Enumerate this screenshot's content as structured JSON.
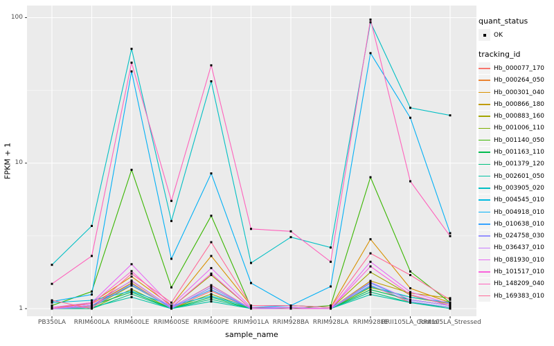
{
  "chart_data": {
    "type": "line",
    "title": "",
    "xlabel": "sample_name",
    "ylabel": "FPKM + 1",
    "y_scale": "log10",
    "y_ticks": [
      1,
      10,
      100
    ],
    "y_minor_ticks": [
      3.1623,
      31.623
    ],
    "ylim": [
      0.89,
      121
    ],
    "grid": true,
    "legend_position": "right",
    "categories": [
      "PB350LA",
      "RRIM600LA",
      "RRIM600LE",
      "RRIM600SE",
      "RRIM600PE",
      "RRIM901LA",
      "RRIM928BA",
      "RRIM928LA",
      "RRIM928LE",
      "RRII105LA_Control",
      "RRII105LA_Stressed"
    ],
    "series": [
      {
        "name": "Hb_000077_170",
        "color": "#F8766D",
        "values": [
          1.0,
          1.04,
          1.5,
          1.0,
          1.32,
          1.0,
          1.0,
          1.0,
          1.45,
          1.1,
          1.02
        ]
      },
      {
        "name": "Hb_000264_050",
        "color": "#EA8331",
        "values": [
          1.02,
          1.08,
          1.55,
          1.02,
          1.45,
          1.0,
          1.02,
          1.0,
          1.5,
          1.15,
          1.05
        ]
      },
      {
        "name": "Hb_000301_040",
        "color": "#D89000",
        "values": [
          1.0,
          1.1,
          1.66,
          1.05,
          2.3,
          1.05,
          1.05,
          1.02,
          3.0,
          1.38,
          1.1
        ]
      },
      {
        "name": "Hb_000866_180",
        "color": "#C09B00",
        "values": [
          1.0,
          1.05,
          1.5,
          1.0,
          1.4,
          1.0,
          1.0,
          1.0,
          1.55,
          1.28,
          1.18
        ]
      },
      {
        "name": "Hb_000883_160",
        "color": "#A3A500",
        "values": [
          1.0,
          1.02,
          1.44,
          1.02,
          1.7,
          1.0,
          1.0,
          1.0,
          1.78,
          1.24,
          1.05
        ]
      },
      {
        "name": "Hb_001006_110",
        "color": "#7CAE00",
        "values": [
          1.0,
          1.0,
          1.36,
          1.0,
          1.26,
          1.0,
          1.0,
          1.0,
          1.4,
          1.2,
          1.08
        ]
      },
      {
        "name": "Hb_001140_050",
        "color": "#39B600",
        "values": [
          1.05,
          1.31,
          9.0,
          1.4,
          4.35,
          1.02,
          1.0,
          1.05,
          8.0,
          1.8,
          1.1
        ]
      },
      {
        "name": "Hb_001163_110",
        "color": "#00BB4E",
        "values": [
          1.0,
          1.05,
          1.3,
          1.0,
          1.2,
          1.0,
          1.0,
          1.0,
          1.35,
          1.15,
          1.05
        ]
      },
      {
        "name": "Hb_001379_120",
        "color": "#00BF7D",
        "values": [
          1.0,
          1.0,
          1.26,
          1.0,
          1.16,
          1.0,
          1.0,
          1.0,
          1.3,
          1.1,
          1.02
        ]
      },
      {
        "name": "Hb_002601_050",
        "color": "#00C1A3",
        "values": [
          1.0,
          1.02,
          1.2,
          1.0,
          1.12,
          1.0,
          1.0,
          1.0,
          1.25,
          1.1,
          1.0
        ]
      },
      {
        "name": "Hb_003905_020",
        "color": "#00BFC4",
        "values": [
          2.0,
          3.7,
          61.0,
          4.0,
          36.5,
          2.06,
          3.1,
          2.63,
          93.0,
          24.0,
          21.3
        ]
      },
      {
        "name": "Hb_004545_010",
        "color": "#00BAE0",
        "values": [
          1.1,
          1.14,
          1.32,
          1.05,
          1.22,
          1.02,
          1.05,
          1.02,
          1.42,
          1.2,
          1.1
        ]
      },
      {
        "name": "Hb_004918_010",
        "color": "#00B0F6",
        "values": [
          1.12,
          1.25,
          42.7,
          2.2,
          8.5,
          1.5,
          1.05,
          1.42,
          57.0,
          20.5,
          3.3
        ]
      },
      {
        "name": "Hb_010638_010",
        "color": "#35A2FF",
        "values": [
          1.0,
          1.05,
          1.45,
          1.02,
          1.35,
          1.0,
          1.02,
          1.0,
          1.5,
          1.15,
          1.05
        ]
      },
      {
        "name": "Hb_024758_030",
        "color": "#9590FF",
        "values": [
          1.0,
          1.02,
          1.48,
          1.0,
          1.4,
          1.0,
          1.0,
          1.0,
          1.45,
          1.12,
          1.02
        ]
      },
      {
        "name": "Hb_036437_010",
        "color": "#C77CFF",
        "values": [
          1.0,
          1.05,
          1.56,
          1.02,
          1.44,
          1.0,
          1.0,
          1.0,
          1.52,
          1.15,
          1.05
        ]
      },
      {
        "name": "Hb_081930_010",
        "color": "#E76BF3",
        "values": [
          1.02,
          1.1,
          2.02,
          1.05,
          1.9,
          1.02,
          1.02,
          1.0,
          2.1,
          1.3,
          1.08
        ]
      },
      {
        "name": "Hb_101517_010",
        "color": "#FA62DB",
        "values": [
          1.0,
          1.08,
          1.81,
          1.02,
          1.74,
          1.0,
          1.0,
          1.0,
          1.95,
          1.25,
          1.05
        ]
      },
      {
        "name": "Hb_148209_040",
        "color": "#FF62BC",
        "values": [
          1.48,
          2.3,
          49.0,
          5.5,
          47.0,
          3.53,
          3.4,
          2.1,
          97.0,
          7.5,
          3.15
        ]
      },
      {
        "name": "Hb_169383_010",
        "color": "#FF6A98",
        "values": [
          1.14,
          1.0,
          1.74,
          1.1,
          2.86,
          1.05,
          1.05,
          1.02,
          2.4,
          1.7,
          1.15
        ]
      }
    ]
  },
  "legend": {
    "quant_status_title": "quant_status",
    "quant_status_items": [
      {
        "label": "OK",
        "marker": "black-square-point"
      }
    ],
    "tracking_title": "tracking_id"
  },
  "style": {
    "panel_bg": "#EBEBEB",
    "grid_color": "#FFFFFF",
    "tick_color": "#333333",
    "tick_label_color": "#4D4D4D",
    "point_color": "#000000",
    "key_bg": "#F2F2F2"
  }
}
